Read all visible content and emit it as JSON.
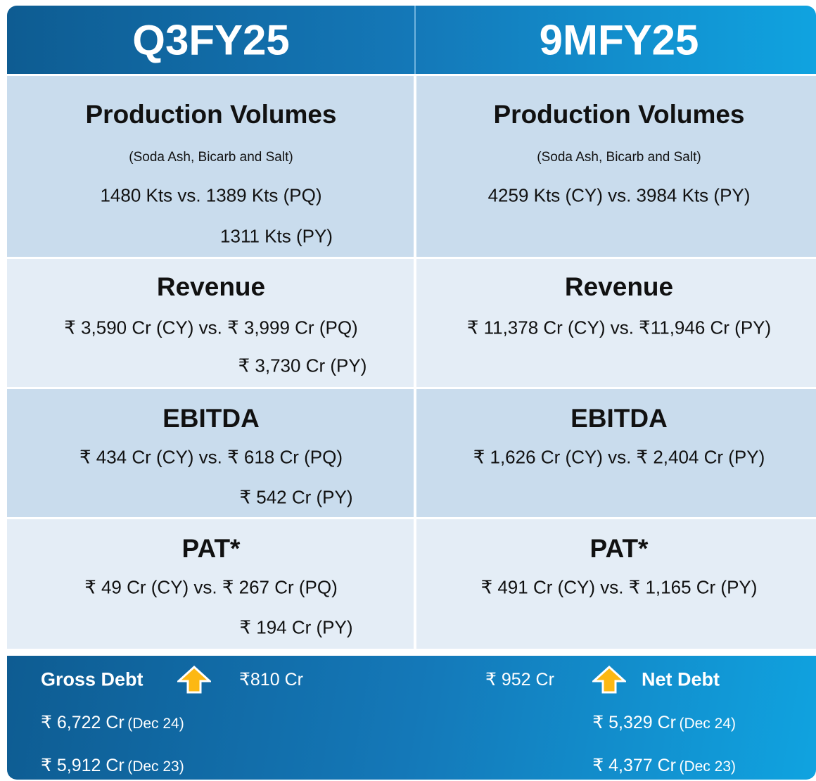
{
  "header": [
    "Q3FY25",
    "9MFY25"
  ],
  "sections": [
    {
      "left": {
        "title": "Production Volumes",
        "subtitle": "(Soda Ash, Bicarb and Salt)",
        "lines": [
          "1480 Kts vs. 1389 Kts (PQ)",
          "1311 Kts (PY)"
        ]
      },
      "right": {
        "title": "Production Volumes",
        "subtitle": "(Soda Ash, Bicarb and Salt)",
        "lines": [
          "4259 Kts (CY) vs. 3984 Kts (PY)"
        ]
      }
    },
    {
      "left": {
        "title": "Revenue",
        "lines": [
          "₹ 3,590 Cr (CY) vs. ₹ 3,999 Cr (PQ)",
          "₹ 3,730 Cr (PY)"
        ]
      },
      "right": {
        "title": "Revenue",
        "lines": [
          "₹ 11,378 Cr (CY) vs. ₹11,946 Cr (PY)"
        ]
      }
    },
    {
      "left": {
        "title": "EBITDA",
        "lines": [
          "₹ 434 Cr (CY) vs. ₹ 618 Cr (PQ)",
          "₹ 542 Cr (PY)"
        ]
      },
      "right": {
        "title": "EBITDA",
        "lines": [
          "₹ 1,626 Cr (CY) vs. ₹ 2,404 Cr (PY)"
        ]
      }
    },
    {
      "left": {
        "title": "PAT*",
        "lines": [
          "₹ 49 Cr (CY) vs. ₹ 267 Cr (PQ)",
          "₹ 194 Cr (PY)"
        ]
      },
      "right": {
        "title": "PAT*",
        "lines": [
          "₹ 491 Cr (CY) vs. ₹ 1,165 Cr (PY)"
        ]
      }
    }
  ],
  "footer": {
    "left": {
      "label": "Gross Debt",
      "change": "₹810 Cr",
      "lines": [
        {
          "amount": "₹ 6,722 Cr",
          "period": "(Dec 24)"
        },
        {
          "amount": "₹ 5,912 Cr",
          "period": "(Dec 23)"
        }
      ]
    },
    "right": {
      "label": "Net Debt",
      "change": "₹ 952 Cr",
      "lines": [
        {
          "amount": "₹ 5,329 Cr",
          "period": "(Dec 24)"
        },
        {
          "amount": "₹ 4,377 Cr",
          "period": "(Dec 23)"
        }
      ]
    }
  }
}
